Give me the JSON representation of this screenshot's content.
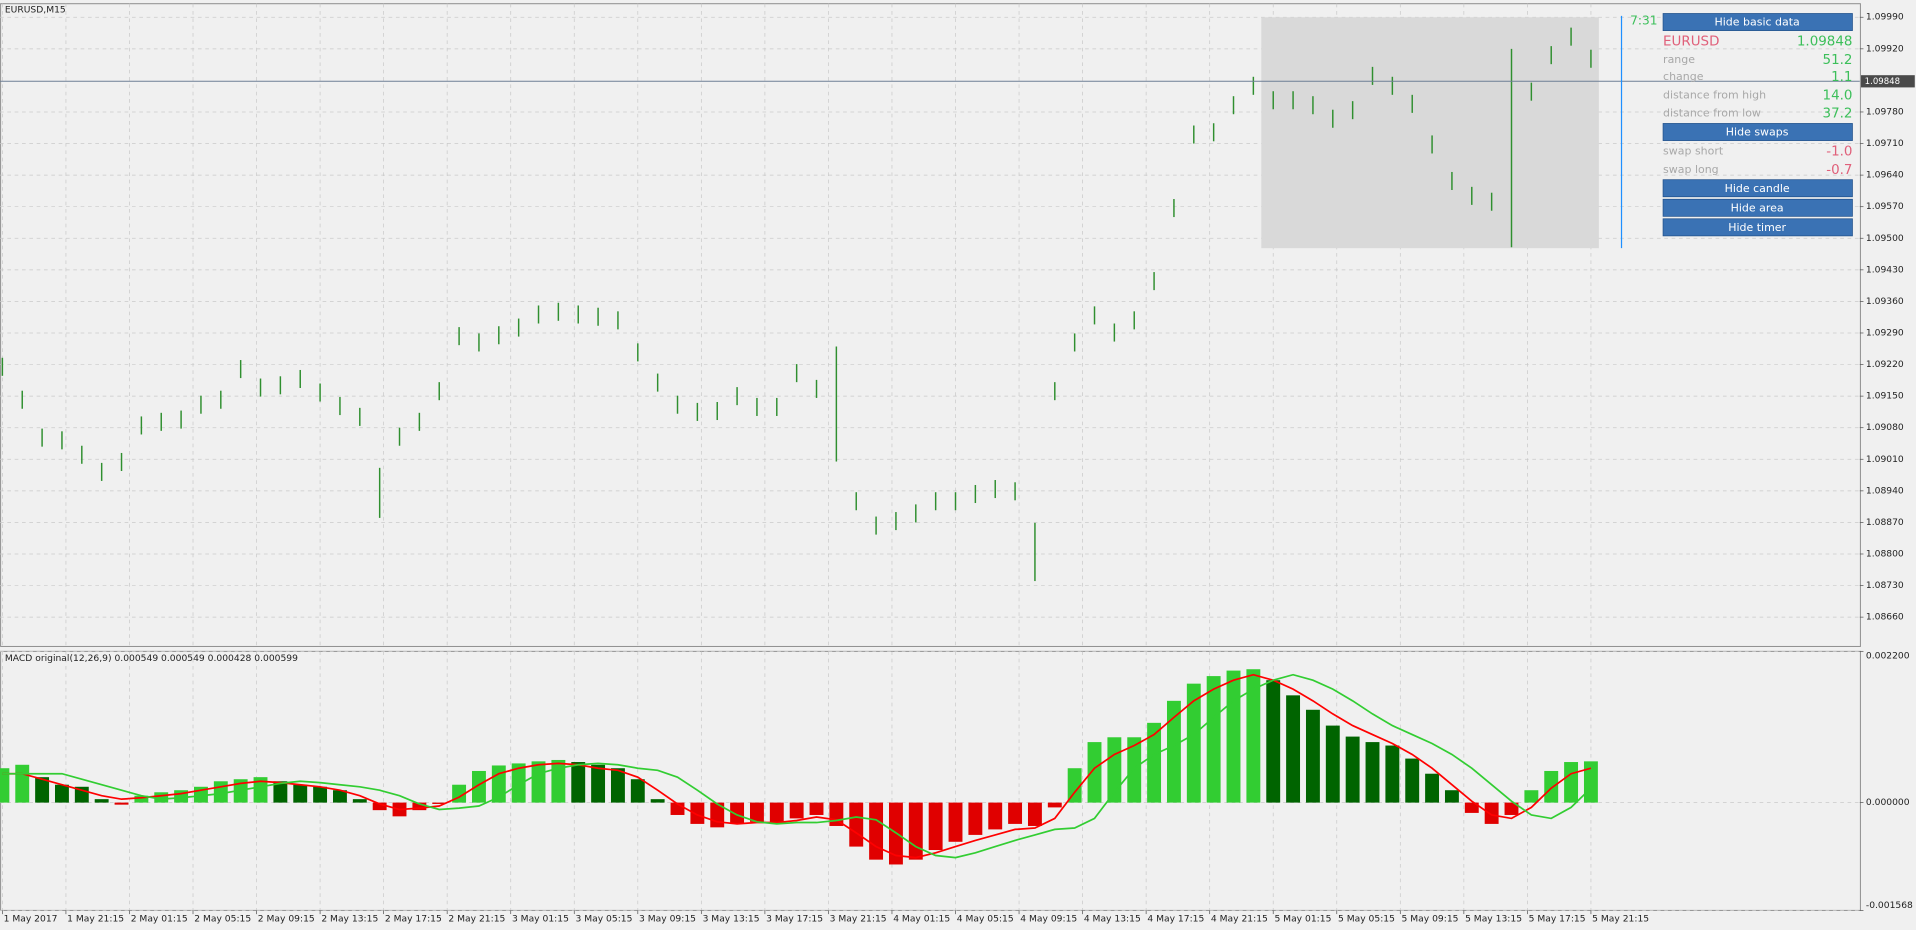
{
  "window_label": "EURUSD,M15",
  "timer": "7:31",
  "panel": {
    "hide_basic_data": "Hide basic data",
    "symbol": "EURUSD",
    "price": "1.09848",
    "rows": [
      [
        "range",
        "51.2"
      ],
      [
        "change",
        "1.1"
      ],
      [
        "distance from high",
        "14.0"
      ],
      [
        "distance from low",
        "37.2"
      ]
    ],
    "hide_swaps": "Hide swaps",
    "swaps": [
      [
        "swap short",
        "-1.0"
      ],
      [
        "swap long",
        "-0.7"
      ]
    ],
    "buttons": [
      "Hide candle",
      "Hide area",
      "Hide timer"
    ]
  },
  "chart_data": [
    {
      "type": "ohlc",
      "color": "#2f8f2f",
      "grid": true,
      "xlim": [
        -0.6,
        467.7
      ],
      "ylim": [
        1.08595,
        1.1002
      ],
      "yticks": [
        {
          "value": 1.0999,
          "label": "1.09990"
        },
        {
          "value": 1.0992,
          "label": "1.09920"
        },
        {
          "value": 1.0978,
          "label": "1.09780"
        },
        {
          "value": 1.0971,
          "label": "1.09710"
        },
        {
          "value": 1.0964,
          "label": "1.09640"
        },
        {
          "value": 1.0957,
          "label": "1.09570"
        },
        {
          "value": 1.095,
          "label": "1.09500"
        },
        {
          "value": 1.0943,
          "label": "1.09430"
        },
        {
          "value": 1.0936,
          "label": "1.09360"
        },
        {
          "value": 1.0929,
          "label": "1.09290"
        },
        {
          "value": 1.0922,
          "label": "1.09220"
        },
        {
          "value": 1.0915,
          "label": "1.09150"
        },
        {
          "value": 1.0908,
          "label": "1.09080"
        },
        {
          "value": 1.0901,
          "label": "1.09010"
        },
        {
          "value": 1.0894,
          "label": "1.08940"
        },
        {
          "value": 1.0887,
          "label": "1.08870"
        },
        {
          "value": 1.088,
          "label": "1.08800"
        },
        {
          "value": 1.0873,
          "label": "1.08730"
        },
        {
          "value": 1.0866,
          "label": "1.08660"
        }
      ],
      "price_line": {
        "value": 1.09848,
        "label": "1.09848"
      },
      "day_range": {
        "x_start": 317,
        "x_end": 402,
        "low": 1.09478,
        "high": 1.0999
      },
      "x": [
        0,
        5,
        10,
        15,
        20,
        25,
        30,
        35,
        40,
        45,
        50,
        55,
        60,
        65,
        70,
        75,
        80,
        85,
        90,
        95,
        100,
        105,
        110,
        115,
        120,
        125,
        130,
        135,
        140,
        145,
        150,
        155,
        160,
        165,
        170,
        175,
        180,
        185,
        190,
        195,
        200,
        205,
        210,
        215,
        220,
        225,
        230,
        235,
        240,
        245,
        250,
        255,
        260,
        265,
        270,
        275,
        280,
        285,
        290,
        295,
        300,
        305,
        310,
        315,
        320,
        325,
        330,
        335,
        340,
        345,
        350,
        355,
        360,
        365,
        370,
        375,
        380,
        385,
        390,
        395,
        400
      ],
      "high": [
        1.09235,
        1.09162,
        1.09078,
        1.09072,
        1.0904,
        1.09002,
        1.09024,
        1.09105,
        1.09113,
        1.09118,
        1.09151,
        1.09162,
        1.0923,
        1.09189,
        1.09194,
        1.09208,
        1.09178,
        1.09148,
        1.09124,
        1.08991,
        1.0908,
        1.09113,
        1.09181,
        1.09303,
        1.09289,
        1.09305,
        1.09322,
        1.09351,
        1.09357,
        1.09351,
        1.09346,
        1.09338,
        1.09267,
        1.092,
        1.09151,
        1.09135,
        1.09137,
        1.0917,
        1.09146,
        1.09146,
        1.09221,
        1.09186,
        1.0926,
        1.08937,
        1.08883,
        1.08893,
        1.0891,
        1.08937,
        1.08937,
        1.08953,
        1.08964,
        1.08959,
        1.08869,
        1.09181,
        1.09289,
        1.09349,
        1.09311,
        1.09338,
        1.09425,
        1.09587,
        1.0975,
        1.09755,
        1.09815,
        1.09858,
        1.09826,
        1.09826,
        1.09815,
        1.09785,
        1.09804,
        1.0988,
        1.09858,
        1.09818,
        1.09728,
        1.09647,
        1.09614,
        1.09601,
        1.0992,
        1.09845,
        1.09926,
        1.09967,
        1.09918
      ],
      "low": [
        1.09195,
        1.09122,
        1.09038,
        1.09032,
        1.09,
        1.08962,
        1.08984,
        1.09065,
        1.09073,
        1.09078,
        1.09111,
        1.09122,
        1.0919,
        1.09149,
        1.09154,
        1.09168,
        1.09138,
        1.09108,
        1.09084,
        1.0888,
        1.0904,
        1.09073,
        1.09141,
        1.09263,
        1.09249,
        1.09265,
        1.09282,
        1.09311,
        1.09317,
        1.09311,
        1.09306,
        1.09298,
        1.09227,
        1.0916,
        1.09111,
        1.09095,
        1.09097,
        1.0913,
        1.09106,
        1.09106,
        1.09181,
        1.09146,
        1.09005,
        1.08897,
        1.08843,
        1.08853,
        1.0887,
        1.08897,
        1.08897,
        1.08913,
        1.08924,
        1.08919,
        1.0874,
        1.09141,
        1.09249,
        1.09309,
        1.09271,
        1.09298,
        1.09385,
        1.09547,
        1.0971,
        1.09715,
        1.09775,
        1.09818,
        1.09786,
        1.09786,
        1.09775,
        1.09745,
        1.09764,
        1.0984,
        1.09818,
        1.09778,
        1.09688,
        1.09607,
        1.09574,
        1.09561,
        1.0948,
        1.09805,
        1.09886,
        1.09927,
        1.09878
      ]
    },
    {
      "type": "macd",
      "title": "MACD original(12,26,9) 0.000549 0.000549 0.000428 0.000599",
      "grid": true,
      "xlim": [
        -0.6,
        467.7
      ],
      "ylim": [
        -0.001568,
        0.0022
      ],
      "yticks": [
        {
          "value": 0.0022,
          "label": "0.002200"
        },
        {
          "value": 0,
          "label": "0.000000"
        },
        {
          "value": -0.001568,
          "label": "-0.001568"
        }
      ],
      "xticks": [
        {
          "value": 0,
          "label": "1 May 2017"
        },
        {
          "value": 16,
          "label": "1 May 21:15"
        },
        {
          "value": 32,
          "label": "2 May 01:15"
        },
        {
          "value": 48,
          "label": "2 May 05:15"
        },
        {
          "value": 64,
          "label": "2 May 09:15"
        },
        {
          "value": 80,
          "label": "2 May 13:15"
        },
        {
          "value": 96,
          "label": "2 May 17:15"
        },
        {
          "value": 112,
          "label": "2 May 21:15"
        },
        {
          "value": 128,
          "label": "3 May 01:15"
        },
        {
          "value": 144,
          "label": "3 May 05:15"
        },
        {
          "value": 160,
          "label": "3 May 09:15"
        },
        {
          "value": 176,
          "label": "3 May 13:15"
        },
        {
          "value": 192,
          "label": "3 May 17:15"
        },
        {
          "value": 208,
          "label": "3 May 21:15"
        },
        {
          "value": 224,
          "label": "4 May 01:15"
        },
        {
          "value": 240,
          "label": "4 May 05:15"
        },
        {
          "value": 256,
          "label": "4 May 09:15"
        },
        {
          "value": 272,
          "label": "4 May 13:15"
        },
        {
          "value": 288,
          "label": "4 May 17:15"
        },
        {
          "value": 304,
          "label": "4 May 21:15"
        },
        {
          "value": 320,
          "label": "5 May 01:15"
        },
        {
          "value": 336,
          "label": "5 May 05:15"
        },
        {
          "value": 352,
          "label": "5 May 09:15"
        },
        {
          "value": 368,
          "label": "5 May 13:15"
        },
        {
          "value": 384,
          "label": "5 May 17:15"
        },
        {
          "value": 400,
          "label": "5 May 21:15"
        }
      ],
      "x": [
        0,
        5,
        10,
        15,
        20,
        25,
        30,
        35,
        40,
        45,
        50,
        55,
        60,
        65,
        70,
        75,
        80,
        85,
        90,
        95,
        100,
        105,
        110,
        115,
        120,
        125,
        130,
        135,
        140,
        145,
        150,
        155,
        160,
        165,
        170,
        175,
        180,
        185,
        190,
        195,
        200,
        205,
        210,
        215,
        220,
        225,
        230,
        235,
        240,
        245,
        250,
        255,
        260,
        265,
        270,
        275,
        280,
        285,
        290,
        295,
        300,
        305,
        310,
        315,
        320,
        325,
        330,
        335,
        340,
        345,
        350,
        355,
        360,
        365,
        370,
        375,
        380,
        385,
        390,
        395,
        400
      ],
      "series": [
        {
          "style": "histogram",
          "colors": {
            "up": "#32cd32",
            "up_falling": "#006400",
            "down": "#e00000"
          },
          "values": [
            0.0005,
            0.00055,
            0.00037,
            0.00026,
            0.00023,
            5e-05,
            -3e-05,
            0.0001,
            0.00015,
            0.00018,
            0.00023,
            0.00031,
            0.00034,
            0.00037,
            0.00031,
            0.00026,
            0.00023,
            0.00018,
            5e-05,
            -0.00011,
            -0.0002,
            -0.00011,
            -2e-05,
            0.00026,
            0.00046,
            0.00054,
            0.00057,
            0.0006,
            0.00062,
            0.00059,
            0.00055,
            0.0005,
            0.00034,
            5e-05,
            -0.00018,
            -0.00031,
            -0.00036,
            -0.00031,
            -0.00028,
            -0.00031,
            -0.00023,
            -0.00018,
            -0.00034,
            -0.00064,
            -0.00083,
            -0.0009,
            -0.00083,
            -0.00069,
            -0.00057,
            -0.00047,
            -0.00039,
            -0.00031,
            -0.00034,
            -7e-05,
            0.0005,
            0.00088,
            0.00095,
            0.00095,
            0.00116,
            0.00148,
            0.00173,
            0.00184,
            0.00192,
            0.00194,
            0.00178,
            0.00156,
            0.00135,
            0.00112,
            0.00096,
            0.00088,
            0.00083,
            0.00064,
            0.00042,
            0.00018,
            -0.00015,
            -0.00031,
            -0.00018,
            0.00018,
            0.00046,
            0.00059,
            0.0006
          ]
        },
        {
          "style": "line",
          "color": "#ff0000",
          "values": [
            0.00042,
            0.00042,
            0.00034,
            0.00026,
            0.00018,
            0.0001,
            5e-05,
            7e-05,
            0.0001,
            0.00013,
            0.00018,
            0.00023,
            0.00028,
            0.00031,
            0.00029,
            0.00026,
            0.00023,
            0.00018,
            0.0001,
            -2e-05,
            -0.0001,
            -8e-05,
            -5e-05,
            8e-05,
            0.00026,
            0.00042,
            0.0005,
            0.00055,
            0.00057,
            0.00055,
            0.0005,
            0.00047,
            0.00037,
            0.00018,
            -2e-05,
            -0.00018,
            -0.00028,
            -0.00031,
            -0.00029,
            -0.00029,
            -0.00026,
            -0.00021,
            -0.00025,
            -0.00044,
            -0.00064,
            -0.00077,
            -0.0008,
            -0.00073,
            -0.00064,
            -0.00055,
            -0.00047,
            -0.00039,
            -0.00037,
            -0.00023,
            0.00015,
            0.0005,
            0.0007,
            0.00083,
            0.00099,
            0.00124,
            0.00148,
            0.00165,
            0.00178,
            0.00186,
            0.00178,
            0.00165,
            0.00148,
            0.00129,
            0.00112,
            0.00099,
            0.00086,
            0.0007,
            0.0005,
            0.00026,
            2e-05,
            -0.00018,
            -0.00023,
            -7e-05,
            0.00021,
            0.00042,
            0.0005
          ]
        },
        {
          "style": "line",
          "color": "#32cd32",
          "values": [
            0.00042,
            0.00042,
            0.00042,
            0.00042,
            0.00034,
            0.00026,
            0.00018,
            0.0001,
            5e-05,
            7e-05,
            0.0001,
            0.00013,
            0.00018,
            0.00023,
            0.00028,
            0.00031,
            0.00029,
            0.00026,
            0.00023,
            0.00018,
            0.0001,
            -2e-05,
            -0.0001,
            -8e-05,
            -5e-05,
            8e-05,
            0.00026,
            0.00042,
            0.0005,
            0.00055,
            0.00057,
            0.00055,
            0.0005,
            0.00047,
            0.00037,
            0.00018,
            -2e-05,
            -0.00018,
            -0.00028,
            -0.00031,
            -0.00029,
            -0.00029,
            -0.00026,
            -0.00021,
            -0.00025,
            -0.00044,
            -0.00064,
            -0.00077,
            -0.0008,
            -0.00073,
            -0.00064,
            -0.00055,
            -0.00047,
            -0.00039,
            -0.00037,
            -0.00023,
            0.00015,
            0.0005,
            0.0007,
            0.00083,
            0.00099,
            0.00124,
            0.00148,
            0.00165,
            0.00178,
            0.00186,
            0.00178,
            0.00165,
            0.00148,
            0.00129,
            0.00112,
            0.00099,
            0.00086,
            0.0007,
            0.0005,
            0.00026,
            2e-05,
            -0.00018,
            -0.00023,
            -7e-05,
            0.00021
          ]
        }
      ]
    }
  ]
}
